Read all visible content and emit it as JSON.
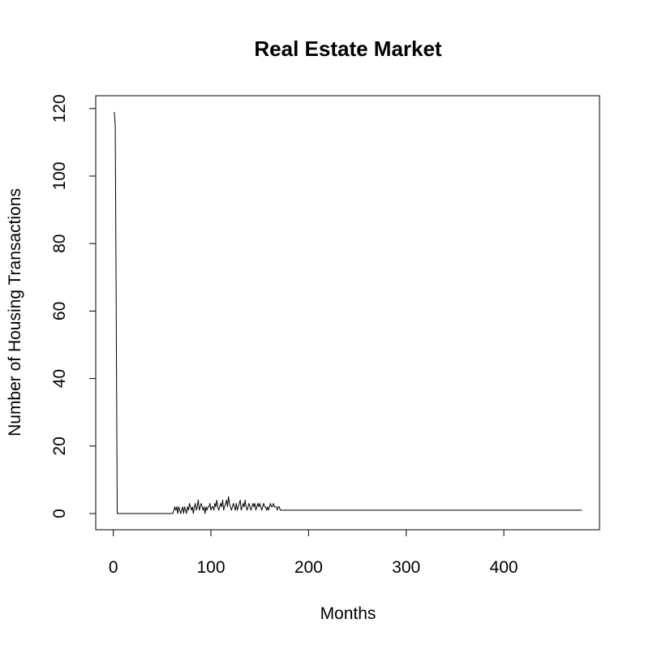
{
  "chart_data": {
    "type": "line",
    "title": "Real Estate Market",
    "xlabel": "Months",
    "ylabel": "Number of Housing Transactions",
    "xlim": [
      -18,
      498
    ],
    "ylim": [
      -4.8,
      123.8
    ],
    "xticks": [
      0,
      100,
      200,
      300,
      400
    ],
    "yticks": [
      0,
      20,
      40,
      60,
      80,
      100,
      120
    ],
    "grid": false,
    "series": [
      {
        "color": "#000000",
        "x": [
          1,
          2,
          3,
          4,
          5,
          10,
          20,
          30,
          40,
          50,
          60,
          61,
          62,
          63,
          64,
          65,
          66,
          67,
          68,
          69,
          70,
          71,
          72,
          73,
          74,
          75,
          76,
          77,
          78,
          79,
          80,
          81,
          82,
          83,
          84,
          85,
          86,
          87,
          88,
          89,
          90,
          91,
          92,
          93,
          94,
          95,
          96,
          97,
          98,
          99,
          100,
          101,
          102,
          103,
          104,
          105,
          106,
          107,
          108,
          109,
          110,
          111,
          112,
          113,
          114,
          115,
          116,
          117,
          118,
          119,
          120,
          121,
          122,
          123,
          124,
          125,
          126,
          127,
          128,
          129,
          130,
          131,
          132,
          133,
          134,
          135,
          136,
          137,
          138,
          139,
          140,
          141,
          142,
          143,
          144,
          145,
          146,
          147,
          148,
          149,
          150,
          151,
          152,
          153,
          154,
          155,
          156,
          157,
          158,
          159,
          160,
          161,
          162,
          163,
          164,
          165,
          166,
          167,
          168,
          169,
          170,
          171,
          172,
          173,
          174,
          175,
          200,
          300,
          400,
          480
        ],
        "y": [
          119,
          115,
          60,
          0,
          0,
          0,
          0,
          0,
          0,
          0,
          0,
          0,
          1,
          2,
          1,
          2,
          0,
          2,
          1,
          0,
          1,
          2,
          0,
          2,
          1,
          0,
          2,
          1,
          3,
          2,
          1,
          2,
          0,
          2,
          3,
          1,
          2,
          4,
          1,
          2,
          3,
          2,
          1,
          2,
          0,
          2,
          1,
          2,
          2,
          3,
          1,
          2,
          2,
          1,
          3,
          2,
          4,
          2,
          1,
          2,
          3,
          2,
          4,
          1,
          2,
          3,
          4,
          2,
          5,
          3,
          2,
          1,
          2,
          3,
          2,
          1,
          3,
          1,
          2,
          3,
          4,
          1,
          2,
          3,
          2,
          4,
          2,
          1,
          2,
          3,
          2,
          1,
          2,
          3,
          2,
          3,
          1,
          2,
          3,
          2,
          3,
          2,
          1,
          2,
          3,
          2,
          2,
          1,
          2,
          1,
          2,
          3,
          2,
          2,
          3,
          2,
          2,
          2,
          1,
          2,
          2,
          1,
          1,
          1,
          1,
          1,
          1,
          1,
          1,
          1
        ]
      }
    ]
  }
}
